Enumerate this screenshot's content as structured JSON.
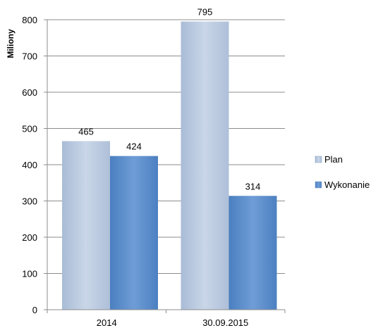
{
  "chart_data": {
    "type": "bar",
    "title": "",
    "xlabel": "",
    "ylabel": "Miliony",
    "ylim": [
      0,
      800
    ],
    "yticks": [
      0,
      100,
      200,
      300,
      400,
      500,
      600,
      700,
      800
    ],
    "grid": true,
    "legend_position": "right",
    "categories": [
      "2014",
      "30.09.2015"
    ],
    "series": [
      {
        "name": "Plan",
        "values": [
          465,
          795
        ],
        "color": "#bccbe0"
      },
      {
        "name": "Wykonanie",
        "values": [
          424,
          314
        ],
        "color": "#5b8ecb"
      }
    ]
  }
}
